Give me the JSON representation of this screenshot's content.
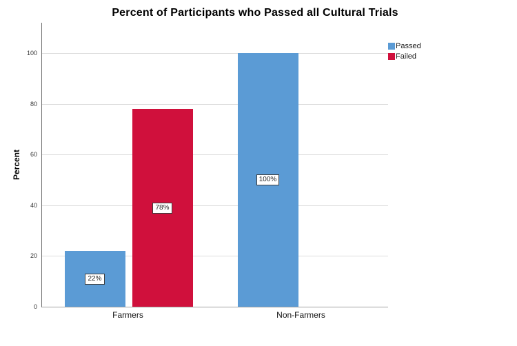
{
  "chart_data": {
    "type": "bar",
    "title": "Percent of Participants who Passed all Cultural Trials",
    "categories": [
      "Farmers",
      "Non-Farmers"
    ],
    "series": [
      {
        "name": "Passed",
        "color": "#5B9BD5",
        "values": [
          22,
          100
        ],
        "value_labels": [
          "22%",
          "100%"
        ]
      },
      {
        "name": "Failed",
        "color": "#D0103C",
        "values": [
          78,
          null
        ],
        "value_labels": [
          "78%",
          null
        ]
      }
    ],
    "xlabel": "",
    "ylabel": "Percent",
    "yticks": [
      0,
      20,
      40,
      60,
      80,
      100
    ],
    "ylim": [
      0,
      100
    ],
    "grid": "horizontal",
    "gridline_color": "#dcdcdc",
    "legend_position": "top-right",
    "value_label_style": "boxed, centered inside bar"
  }
}
